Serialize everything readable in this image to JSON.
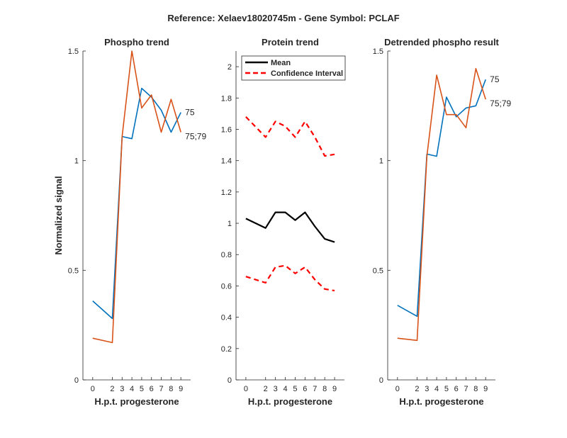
{
  "figure": {
    "title": "Reference:  Xelaev18020745m - Gene Symbol:  PCLAF"
  },
  "colors": {
    "series_a": "#0072BD",
    "series_b": "#D95319",
    "mean": "#000000",
    "ci": "#FF0000",
    "axis": "#262626"
  },
  "chart_data": [
    {
      "type": "line",
      "title": "Phospho trend",
      "xlabel": "H.p.t. progesterone",
      "ylabel": "Normalized signal",
      "x": [
        0,
        2,
        3,
        4,
        5,
        6,
        7,
        8,
        9
      ],
      "xticks": [
        "0",
        "2",
        "3",
        "4",
        "5",
        "6",
        "7",
        "8",
        "9"
      ],
      "xlim": [
        -1,
        10
      ],
      "ylim": [
        0,
        1.5
      ],
      "yticks": [
        "0",
        "0.5",
        "1",
        "1.5"
      ],
      "series": [
        {
          "name": "75",
          "color": "#0072BD",
          "values": [
            0.36,
            0.28,
            1.11,
            1.1,
            1.33,
            1.29,
            1.23,
            1.13,
            1.22
          ]
        },
        {
          "name": "75;79",
          "color": "#D95319",
          "values": [
            0.19,
            0.17,
            1.11,
            1.5,
            1.24,
            1.3,
            1.13,
            1.28,
            1.13
          ]
        }
      ],
      "annotations": [
        "75",
        "75;79"
      ]
    },
    {
      "type": "line",
      "title": "Protein trend",
      "xlabel": "H.p.t. progesterone",
      "ylabel": "",
      "x": [
        0,
        2,
        3,
        4,
        5,
        6,
        7,
        8,
        9
      ],
      "xticks": [
        "0",
        "2",
        "3",
        "4",
        "5",
        "6",
        "7",
        "8",
        "9"
      ],
      "xlim": [
        -1,
        10
      ],
      "ylim": [
        0,
        2.1
      ],
      "yticks": [
        "0",
        "0.2",
        "0.4",
        "0.6",
        "0.8",
        "1",
        "1.2",
        "1.4",
        "1.6",
        "1.8",
        "2"
      ],
      "legend": {
        "position": "top-left",
        "entries": [
          "Mean",
          "Confidence Interval"
        ]
      },
      "series": [
        {
          "name": "Mean",
          "color": "#000000",
          "style": "solid",
          "values": [
            1.03,
            0.97,
            1.07,
            1.07,
            1.02,
            1.07,
            0.98,
            0.9,
            0.88
          ]
        },
        {
          "name": "Confidence Interval",
          "color": "#FF0000",
          "style": "dashed",
          "values": [
            1.68,
            1.55,
            1.65,
            1.62,
            1.55,
            1.65,
            1.55,
            1.43,
            1.44
          ]
        },
        {
          "name": "Confidence Interval",
          "color": "#FF0000",
          "style": "dashed",
          "values": [
            0.66,
            0.62,
            0.72,
            0.73,
            0.68,
            0.72,
            0.64,
            0.58,
            0.57
          ]
        }
      ]
    },
    {
      "type": "line",
      "title": "Detrended phospho result",
      "xlabel": "H.p.t. progesterone",
      "ylabel": "",
      "x": [
        0,
        2,
        3,
        4,
        5,
        6,
        7,
        8,
        9
      ],
      "xticks": [
        "0",
        "2",
        "3",
        "4",
        "5",
        "6",
        "7",
        "8",
        "9"
      ],
      "xlim": [
        -1,
        10
      ],
      "ylim": [
        0,
        1.5
      ],
      "yticks": [
        "0",
        "0.5",
        "1",
        "1.5"
      ],
      "series": [
        {
          "name": "75",
          "color": "#0072BD",
          "values": [
            0.34,
            0.29,
            1.03,
            1.02,
            1.29,
            1.2,
            1.24,
            1.25,
            1.37
          ]
        },
        {
          "name": "75;79",
          "color": "#D95319",
          "values": [
            0.19,
            0.18,
            1.02,
            1.39,
            1.21,
            1.21,
            1.15,
            1.42,
            1.28
          ]
        }
      ],
      "annotations": [
        "75",
        "75;79"
      ]
    }
  ]
}
